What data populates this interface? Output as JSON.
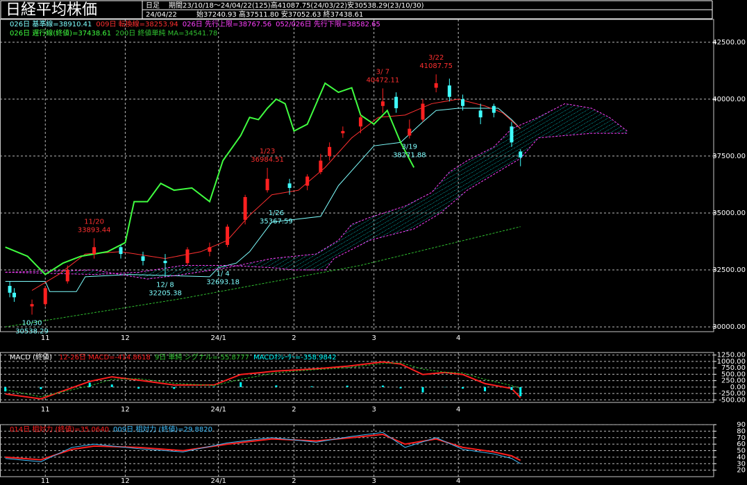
{
  "chart_data": [
    {
      "type": "candlestick",
      "title": "日経平均株価",
      "timeframe": "日足",
      "period": "期間23/10/18～24/04/22(125)高41087.75(24/03/22)安30538.29(23/10/30)",
      "date": "24/04/22",
      "ohlc": "始37240.93 高37511.80 安37052.63 終37438.61",
      "xlim": [
        -1.2,
        159.5
      ],
      "ylim": [
        29790,
        43500
      ],
      "xticks": [
        {
          "value": 9,
          "label": "11"
        },
        {
          "value": 27,
          "label": "12"
        },
        {
          "value": 48,
          "label": "24/1"
        },
        {
          "value": 65,
          "label": "2"
        },
        {
          "value": 83,
          "label": "3"
        },
        {
          "value": 102,
          "label": "4"
        }
      ],
      "yticks": [
        {
          "value": 30000,
          "label": "30000.00"
        },
        {
          "value": 32500,
          "label": "32500.00"
        },
        {
          "value": 35000,
          "label": "35000.00"
        },
        {
          "value": 37500,
          "label": "37500.00"
        },
        {
          "value": 40000,
          "label": "40000.00"
        },
        {
          "value": 42500,
          "label": "42500.00"
        }
      ],
      "grid": true,
      "up_color": "#ff2020",
      "down_color": "#40ffff",
      "x": [
        1,
        2,
        6,
        9,
        14,
        20,
        26,
        31,
        36,
        41,
        46,
        50,
        54,
        59,
        64,
        68,
        71,
        73,
        76,
        80,
        85,
        88,
        91,
        94,
        97,
        100,
        103,
        107,
        110,
        114,
        116
      ],
      "open": [
        31800,
        31500,
        30900,
        31000,
        32000,
        33200,
        33500,
        33100,
        32900,
        32800,
        33300,
        33600,
        34700,
        36000,
        36300,
        36200,
        36800,
        37500,
        38500,
        38800,
        39700,
        40100,
        38400,
        39100,
        40500,
        40600,
        40000,
        39500,
        39700,
        38800,
        37700
      ],
      "high": [
        32000,
        31700,
        31200,
        31800,
        32700,
        33893.44,
        33600,
        33300,
        33200,
        33500,
        33700,
        34500,
        35800,
        36984.51,
        36500,
        36700,
        37600,
        38100,
        38800,
        39300,
        40472.11,
        40300,
        39100,
        40000,
        41087.75,
        40900,
        40200,
        39800,
        39800,
        39000,
        37800
      ],
      "low": [
        31300,
        31100,
        30538.29,
        30900,
        31900,
        33000,
        33000,
        32700,
        32205.38,
        32700,
        33100,
        33500,
        34500,
        35900,
        35800,
        36000,
        36700,
        37300,
        38300,
        38500,
        39400,
        39400,
        38271.88,
        39000,
        40300,
        39900,
        39500,
        38900,
        39200,
        37900,
        37052.63
      ],
      "close": [
        31500,
        31300,
        31000,
        31700,
        32500,
        33500,
        33200,
        32900,
        32800,
        33400,
        33500,
        34400,
        35700,
        36500,
        36100,
        36600,
        37300,
        37900,
        38600,
        39200,
        39900,
        39600,
        38700,
        39800,
        40700,
        40100,
        39700,
        39200,
        39400,
        38100,
        37438.61
      ],
      "series": [
        {
          "name": "026日 基準線=38910.41",
          "color": "#7fffff",
          "x": [
            0,
            9,
            10,
            16,
            18,
            28,
            46,
            48,
            52,
            55,
            60,
            71,
            75,
            83,
            89,
            94,
            97,
            102,
            111,
            114,
            116
          ],
          "values": [
            32000,
            32000,
            31550,
            31550,
            32200,
            32300,
            32200,
            32600,
            32800,
            33300,
            34600,
            34850,
            36200,
            37950,
            38100,
            39000,
            39500,
            39600,
            39600,
            39100,
            38700
          ]
        },
        {
          "name": "009日 転換線=38253.94",
          "color": "#ff3030",
          "x": [
            6,
            12,
            18,
            26,
            36,
            44,
            50,
            55,
            60,
            66,
            72,
            78,
            84,
            90,
            96,
            102,
            108,
            112,
            116
          ],
          "values": [
            31600,
            32300,
            33200,
            33300,
            33000,
            33300,
            33800,
            34900,
            35800,
            36000,
            37000,
            38300,
            39200,
            39300,
            39800,
            40000,
            39700,
            39400,
            38700
          ]
        },
        {
          "name": "026日 先行上限=38767.56",
          "color": "#ff40ff",
          "dash": true,
          "fill_to_next": true,
          "x": [
            0,
            20,
            32,
            40,
            50,
            60,
            70,
            75,
            78,
            82,
            90,
            96,
            100,
            104,
            110,
            114,
            120,
            126,
            132,
            136,
            140
          ],
          "values": [
            32400,
            32500,
            32100,
            32300,
            32600,
            33000,
            33200,
            33800,
            34500,
            34800,
            35300,
            35900,
            36800,
            37300,
            37900,
            38700,
            39200,
            39800,
            39600,
            39200,
            38600
          ]
        },
        {
          "name": "052/026日 先行下限=38582.65",
          "color": "#ff40ff",
          "dash": true,
          "x": [
            0,
            20,
            30,
            40,
            50,
            60,
            65,
            72,
            74,
            78,
            82,
            92,
            98,
            104,
            110,
            116,
            120,
            126,
            132,
            140
          ],
          "values": [
            32400,
            32300,
            32400,
            32700,
            32700,
            32600,
            32500,
            32500,
            33000,
            33400,
            33800,
            34300,
            35000,
            36000,
            36700,
            37400,
            38300,
            38400,
            38500,
            38500
          ]
        },
        {
          "name": "026日 遅行線(終値)=37438.61",
          "color": "#40ff40",
          "line_width": 2,
          "x": [
            0,
            5,
            9,
            13,
            17,
            23,
            27,
            29,
            32,
            35,
            38,
            42,
            46,
            49,
            53,
            55,
            57,
            59,
            61,
            63,
            65,
            68,
            70,
            72,
            75,
            78,
            80,
            83,
            86,
            89,
            92
          ],
          "values": [
            33500,
            33100,
            32300,
            32800,
            33100,
            33300,
            33700,
            35500,
            35500,
            36300,
            36000,
            36100,
            35500,
            37300,
            38400,
            39200,
            39100,
            39600,
            40000,
            39800,
            38600,
            38900,
            39800,
            40700,
            40300,
            40500,
            39300,
            38900,
            39500,
            38100,
            37000
          ]
        },
        {
          "name": "200日 終値単純 MA=34541.78",
          "color": "#30c030",
          "dash": true,
          "x": [
            0,
            40,
            80,
            116
          ],
          "values": [
            30000,
            31250,
            32700,
            34400
          ]
        }
      ],
      "annotations": [
        {
          "date": "10/30",
          "value": 30538.29,
          "x": 6,
          "position": "below",
          "color": "#7fffff"
        },
        {
          "date": "11/20",
          "value": 33893.44,
          "x": 20,
          "position": "above",
          "color": "#ff3030"
        },
        {
          "date": "12/ 8",
          "value": 32205.38,
          "x": 36,
          "position": "below",
          "color": "#7fffff"
        },
        {
          "date": "1/ 4",
          "value": 32693.18,
          "x": 49,
          "position": "below",
          "color": "#7fffff"
        },
        {
          "date": "1/23",
          "value": 36984.51,
          "x": 59,
          "position": "above",
          "color": "#ff3030"
        },
        {
          "date": "1/26",
          "value": 35367.59,
          "x": 61,
          "position": "below",
          "color": "#7fffff"
        },
        {
          "date": "3/ 7",
          "value": 40472.11,
          "x": 85,
          "position": "above",
          "color": "#ff3030"
        },
        {
          "date": "3/19",
          "value": 38271.88,
          "x": 91,
          "position": "below",
          "color": "#7fffff"
        },
        {
          "date": "3/22",
          "value": 41087.75,
          "x": 97,
          "position": "above",
          "color": "#ff3030"
        }
      ]
    },
    {
      "type": "line",
      "title": "MACD (終値)",
      "xlim": [
        -1.2,
        159.5
      ],
      "ylim": [
        -600,
        1350
      ],
      "xticks": [
        {
          "value": 9,
          "label": "11"
        },
        {
          "value": 27,
          "label": "12"
        },
        {
          "value": 48,
          "label": "24/1"
        },
        {
          "value": 65,
          "label": "2"
        },
        {
          "value": 83,
          "label": "3"
        },
        {
          "value": 102,
          "label": "4"
        }
      ],
      "yticks": [
        {
          "value": -500,
          "label": "-500.00"
        },
        {
          "value": -250,
          "label": "-250.00"
        },
        {
          "value": 0,
          "label": "0.00"
        },
        {
          "value": 250,
          "label": "250.00"
        },
        {
          "value": 500,
          "label": "500.00"
        },
        {
          "value": 750,
          "label": "750.00"
        },
        {
          "value": 1000,
          "label": "1000.00"
        },
        {
          "value": 1250,
          "label": "1250.00"
        }
      ],
      "grid": true,
      "series": [
        {
          "name": "12-26日 MACD=-414.8618",
          "color": "#ff2020",
          "line_width": 2,
          "x": [
            0,
            8,
            19,
            24,
            30,
            38,
            47,
            53,
            61,
            69,
            77,
            85,
            89,
            94,
            99,
            103,
            108,
            114,
            116
          ],
          "values": [
            -270,
            -460,
            220,
            400,
            270,
            80,
            80,
            490,
            625,
            700,
            815,
            980,
            900,
            490,
            570,
            490,
            135,
            -55,
            -414.86
          ]
        },
        {
          "name": "9日 単純 シグナル=-55.8777",
          "color": "#30c030",
          "dash": true,
          "x": [
            0,
            8,
            19,
            24,
            30,
            38,
            47,
            53,
            61,
            69,
            77,
            85,
            89,
            94,
            99,
            103,
            108,
            114,
            116
          ],
          "values": [
            -100,
            -380,
            50,
            300,
            330,
            150,
            60,
            300,
            560,
            670,
            760,
            920,
            950,
            700,
            580,
            550,
            300,
            60,
            -55.88
          ]
        },
        {
          "name": "MACDｵｼﾚｰﾀｰ=-358.9842",
          "color": "#00ffff",
          "type": "bar",
          "x": [
            0,
            8,
            19,
            24,
            30,
            38,
            47,
            53,
            61,
            69,
            77,
            85,
            89,
            94,
            99,
            103,
            108,
            114,
            116
          ],
          "values": [
            -170,
            -80,
            170,
            100,
            -60,
            -70,
            20,
            190,
            65,
            30,
            55,
            60,
            -50,
            -210,
            -10,
            -60,
            -165,
            -115,
            -358.98
          ]
        }
      ]
    },
    {
      "type": "line",
      "xlim": [
        -1.2,
        159.5
      ],
      "ylim": [
        10,
        90
      ],
      "xticks": [
        {
          "value": 9,
          "label": "11"
        },
        {
          "value": 27,
          "label": "12"
        },
        {
          "value": 48,
          "label": "24/1"
        },
        {
          "value": 65,
          "label": "2"
        },
        {
          "value": 83,
          "label": "3"
        },
        {
          "value": 102,
          "label": "4"
        }
      ],
      "yticks": [
        20,
        30,
        40,
        50,
        60,
        70,
        80,
        90
      ],
      "grid": true,
      "series": [
        {
          "name": "014日 相対力 (終値)=35.0640",
          "color": "#ff2020",
          "line_width": 2,
          "x": [
            0,
            8,
            15,
            20,
            30,
            40,
            50,
            60,
            70,
            78,
            85,
            90,
            97,
            103,
            110,
            114,
            116
          ],
          "values": [
            40,
            36,
            52,
            57,
            55,
            50,
            60,
            68,
            65,
            70,
            75,
            60,
            68,
            55,
            48,
            42,
            35.064
          ]
        },
        {
          "name": "009日 相対力 (終値)=29.8820",
          "color": "#40c0ff",
          "x": [
            0,
            8,
            15,
            20,
            30,
            40,
            50,
            60,
            70,
            78,
            85,
            90,
            97,
            103,
            110,
            114,
            116
          ],
          "values": [
            38,
            33,
            55,
            60,
            53,
            48,
            62,
            70,
            63,
            72,
            78,
            55,
            70,
            52,
            45,
            38,
            29.882
          ]
        }
      ]
    }
  ]
}
